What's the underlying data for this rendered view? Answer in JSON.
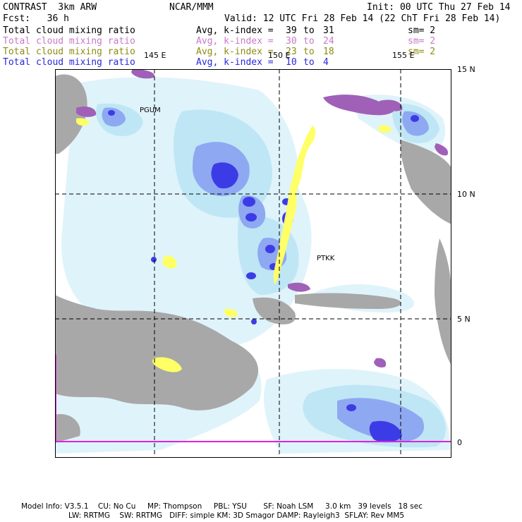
{
  "header": {
    "model": "CONTRAST  3km ARW",
    "org": "NCAR/MMM",
    "init": "Init: 00 UTC Thu 27 Feb 14",
    "fcst": "Fcst:   36 h",
    "valid": "Valid: 12 UTC Fri 28 Feb 14 (22 ChT Fri 28 Feb 14)"
  },
  "legend": [
    {
      "name": "Total cloud mixing ratio",
      "avg": "Avg, k-index =",
      "from": "39",
      "to_word": "to",
      "to": "31",
      "sm": "sm= 2",
      "color": "#000000"
    },
    {
      "name": "Total cloud mixing ratio",
      "avg": "Avg, k-index =",
      "from": "30",
      "to_word": "to",
      "to": "24",
      "sm": "sm= 2",
      "color": "#c87ac8"
    },
    {
      "name": "Total cloud mixing ratio",
      "avg": "Avg, k-index =",
      "from": "23",
      "to_word": "to",
      "to": "18",
      "sm": "sm= 2",
      "color": "#8c8c14"
    },
    {
      "name": "Total cloud mixing ratio",
      "avg": "Avg, k-index =",
      "from": "10",
      "to_word": "to",
      "to": "4",
      "sm": "",
      "color": "#2828dc"
    }
  ],
  "map": {
    "lon_labels": [
      "145 E",
      "150 E",
      "155 E"
    ],
    "lat_labels": [
      "15 N",
      "10 N",
      "5 N",
      "0"
    ],
    "stations": [
      "PGUM",
      "PTKK"
    ],
    "colors": {
      "gray": "#a8a8a8",
      "light_cyan": "#dff3fb",
      "pale_blue": "#bfe6f5",
      "mid_blue": "#8fa8f2",
      "deep_blue": "#3c3ce6",
      "yellow": "#ffff66",
      "purple": "#a060b8",
      "magenta": "#e020e0"
    }
  },
  "footer": {
    "line1": "Model Info: V3.5.1    CU: No Cu     MP: Thompson     PBL: YSU       SF: Noah LSM     3.0 km   39 levels   18 sec",
    "line2": "LW: RRTMG    SW: RRTMG   DIFF: simple KM: 3D Smagor DAMP: Rayleigh3  SFLAY: Rev MM5"
  }
}
